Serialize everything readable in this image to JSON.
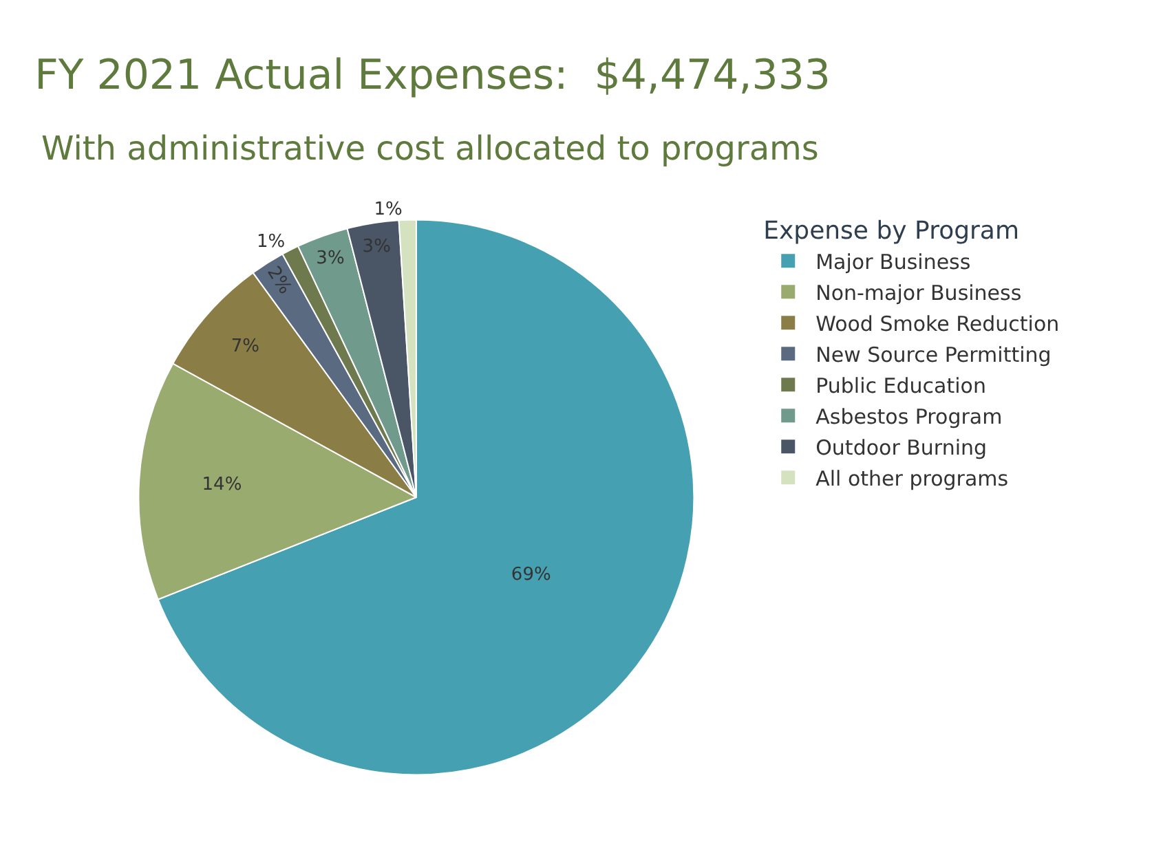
{
  "chart_data": {
    "type": "pie",
    "title": "FY 2021 Actual Expenses:  $4,474,333",
    "subtitle": "With administrative cost allocated to programs",
    "legend_title": "Expense by Program",
    "legend": "right",
    "categories": [
      "Major Business",
      "Non-major Business",
      "Wood Smoke Reduction",
      "New Source Permitting",
      "Public Education",
      "Asbestos Program",
      "Outdoor Burning",
      "All other programs"
    ],
    "values": [
      69,
      14,
      7,
      2,
      1,
      3,
      3,
      1
    ],
    "value_labels": [
      "69%",
      "14%",
      "7%",
      "2%",
      "1%",
      "3%",
      "3%",
      "1%"
    ],
    "colors": [
      "#45a0b2",
      "#9aab70",
      "#8a7d45",
      "#5a6a80",
      "#6e7a4e",
      "#6f9a8c",
      "#4a5566",
      "#d4e2c0"
    ]
  }
}
